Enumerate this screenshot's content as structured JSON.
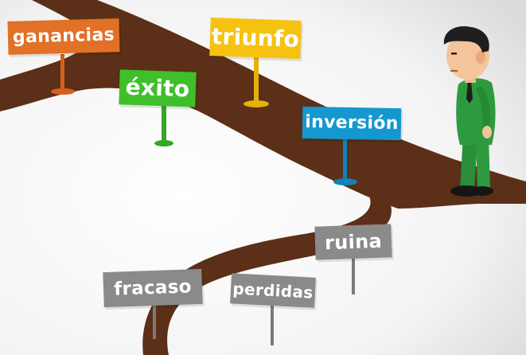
{
  "colors": {
    "background_light": "#ffffff",
    "background_shade": "#e4e4e4",
    "branch": "#5c2f18",
    "orange": "#e27026",
    "yellow": "#f5c20f",
    "green": "#3fbf2a",
    "blue": "#1597cf",
    "gray": "#8a8a8a",
    "suit": "#2e9a3f",
    "hair": "#1f1f1f",
    "skin": "#f4c49b"
  },
  "signs": {
    "ganancias": "ganancias",
    "triunfo": "triunfo",
    "exito": "éxito",
    "inversion": "inversión",
    "ruina": "ruina",
    "fracaso": "fracaso",
    "perdidas": "perdidas"
  }
}
